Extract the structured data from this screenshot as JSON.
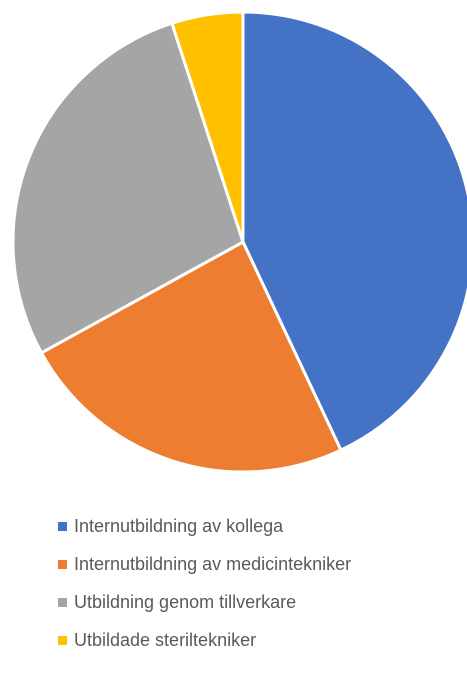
{
  "chart_data": {
    "type": "pie",
    "categories": [
      "Internutbildning av kollega",
      "Internutbildning av medicintekniker",
      "Utbildning genom tillverkare",
      "Utbildade steriltekniker"
    ],
    "values": [
      43,
      24,
      28,
      5
    ],
    "colors": [
      "#4472C4",
      "#ED7D31",
      "#A5A5A5",
      "#FFC000"
    ],
    "legend_position": "bottom",
    "grid": false
  }
}
